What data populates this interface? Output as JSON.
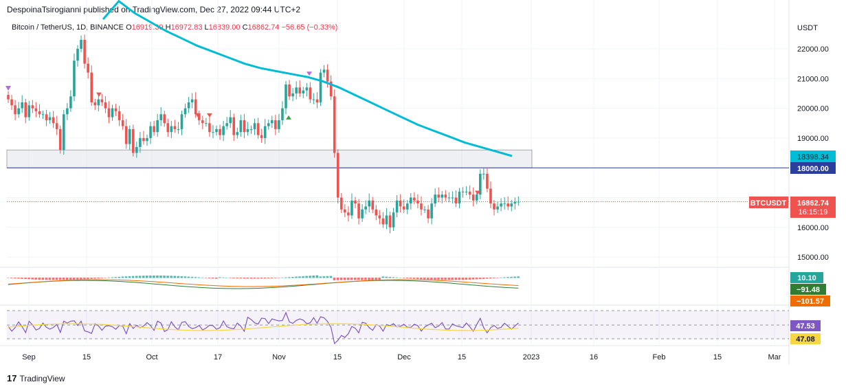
{
  "header": {
    "publisher_line": "DespoinaTsirogianni published on TradingView.com, Dec 27, 2022 09:44 UTC+2"
  },
  "legend": {
    "symbol": "Bitcoin / TetherUS, 1D, BINANCE",
    "o_label": "O",
    "open": "16919.39",
    "h_label": "H",
    "high": "16972.83",
    "l_label": "L",
    "low": "16839.00",
    "c_label": "C",
    "close": "16862.74",
    "change": "−56.65 (−0.33%)"
  },
  "axis": {
    "currency": "USDT",
    "price_ticks": [
      "22000.00",
      "21000.00",
      "20000.00",
      "19000.00",
      "18000.00",
      "17000.00",
      "16000.00",
      "15000.00"
    ],
    "time_ticks": [
      "Sep",
      "15",
      "Oct",
      "17",
      "Nov",
      "15",
      "Dec",
      "15",
      "2023",
      "16",
      "Feb",
      "15",
      "Mar"
    ]
  },
  "badges": {
    "ma_value": "18398.34",
    "level_value": "18000.00",
    "ticker": "BTCUSDT",
    "last_price": "16862.74",
    "countdown": "16:15:19",
    "macd_hist": "10.10",
    "macd_line": "−91.48",
    "macd_signal": "−101.57",
    "rsi_value": "47.53",
    "rsi_ma": "47.08"
  },
  "footer": {
    "brand": "TradingView"
  },
  "colors": {
    "up": "#26a69a",
    "down": "#ef5350",
    "ma": "#00bcd4",
    "level": "#2a3f9d",
    "rsi": "#7e57c2",
    "rsi_ma": "#f5d742",
    "macd_line": "#2e7d32",
    "macd_signal": "#ef6c00"
  },
  "chart_data": {
    "type": "candlestick",
    "title": "Bitcoin / TetherUS, 1D, BINANCE",
    "ylabel": "USDT",
    "ylim": [
      15000,
      22500
    ],
    "horizontal_level": 18000,
    "zone": [
      18000,
      18600
    ],
    "closes": [
      20300,
      20100,
      19800,
      20000,
      20200,
      19700,
      20100,
      20000,
      19900,
      19800,
      19800,
      19600,
      19700,
      19500,
      19300,
      18600,
      19800,
      20000,
      20400,
      21600,
      22000,
      22300,
      21500,
      21200,
      20200,
      20100,
      20300,
      20200,
      20000,
      19700,
      20000,
      19900,
      19600,
      19400,
      18800,
      19300,
      18500,
      18700,
      19000,
      18900,
      19000,
      19400,
      19200,
      19600,
      19800,
      19500,
      19200,
      19400,
      19300,
      19300,
      19800,
      20000,
      20200,
      20300,
      19800,
      19600,
      19500,
      19500,
      19200,
      19200,
      19300,
      19100,
      19400,
      19500,
      19700,
      19100,
      19200,
      19600,
      19200,
      19300,
      19300,
      19500,
      19100,
      19000,
      19400,
      19500,
      19600,
      19300,
      19600,
      20000,
      20800,
      20400,
      20500,
      20700,
      20500,
      20600,
      20700,
      20300,
      20300,
      20200,
      21200,
      21300,
      20900,
      20400,
      18500,
      17000,
      16600,
      16500,
      16400,
      16900,
      16800,
      16300,
      16600,
      16700,
      16900,
      16600,
      16400,
      16300,
      16100,
      16400,
      16000,
      16500,
      16900,
      16700,
      16600,
      16800,
      17000,
      16900,
      16800,
      16600,
      16600,
      16300,
      16800,
      17100,
      17000,
      17100,
      17000,
      17000,
      17000,
      16800,
      17200,
      17200,
      17200,
      17100,
      16900,
      17100,
      17800,
      17800,
      17300,
      16800,
      16600,
      16700,
      16800,
      16800,
      16700,
      16800,
      16850,
      16860
    ],
    "ma_values": [
      24000,
      23600,
      23200,
      22900,
      22600,
      22350,
      22100,
      21900,
      21700,
      21500,
      21350,
      21250,
      21150,
      21050,
      20900,
      20700,
      20450,
      20200,
      19950,
      19700,
      19450,
      19250,
      19050,
      18850,
      18700,
      18550,
      18398.34
    ],
    "markers_down": [
      [
        "2022-09-19",
        20300
      ],
      [
        "2022-10-15",
        19600
      ],
      [
        "2022-10-17",
        19600
      ],
      [
        "2022-11-06",
        21000
      ],
      [
        "2022-12-18",
        17000
      ]
    ],
    "markers_up": [
      [
        "2022-11-02",
        19900
      ]
    ],
    "macd": {
      "line": -91.48,
      "signal": -101.57,
      "histogram": 10.1
    },
    "rsi": {
      "value": 47.53,
      "ma": 47.08,
      "bands": [
        70,
        50,
        30
      ]
    }
  }
}
